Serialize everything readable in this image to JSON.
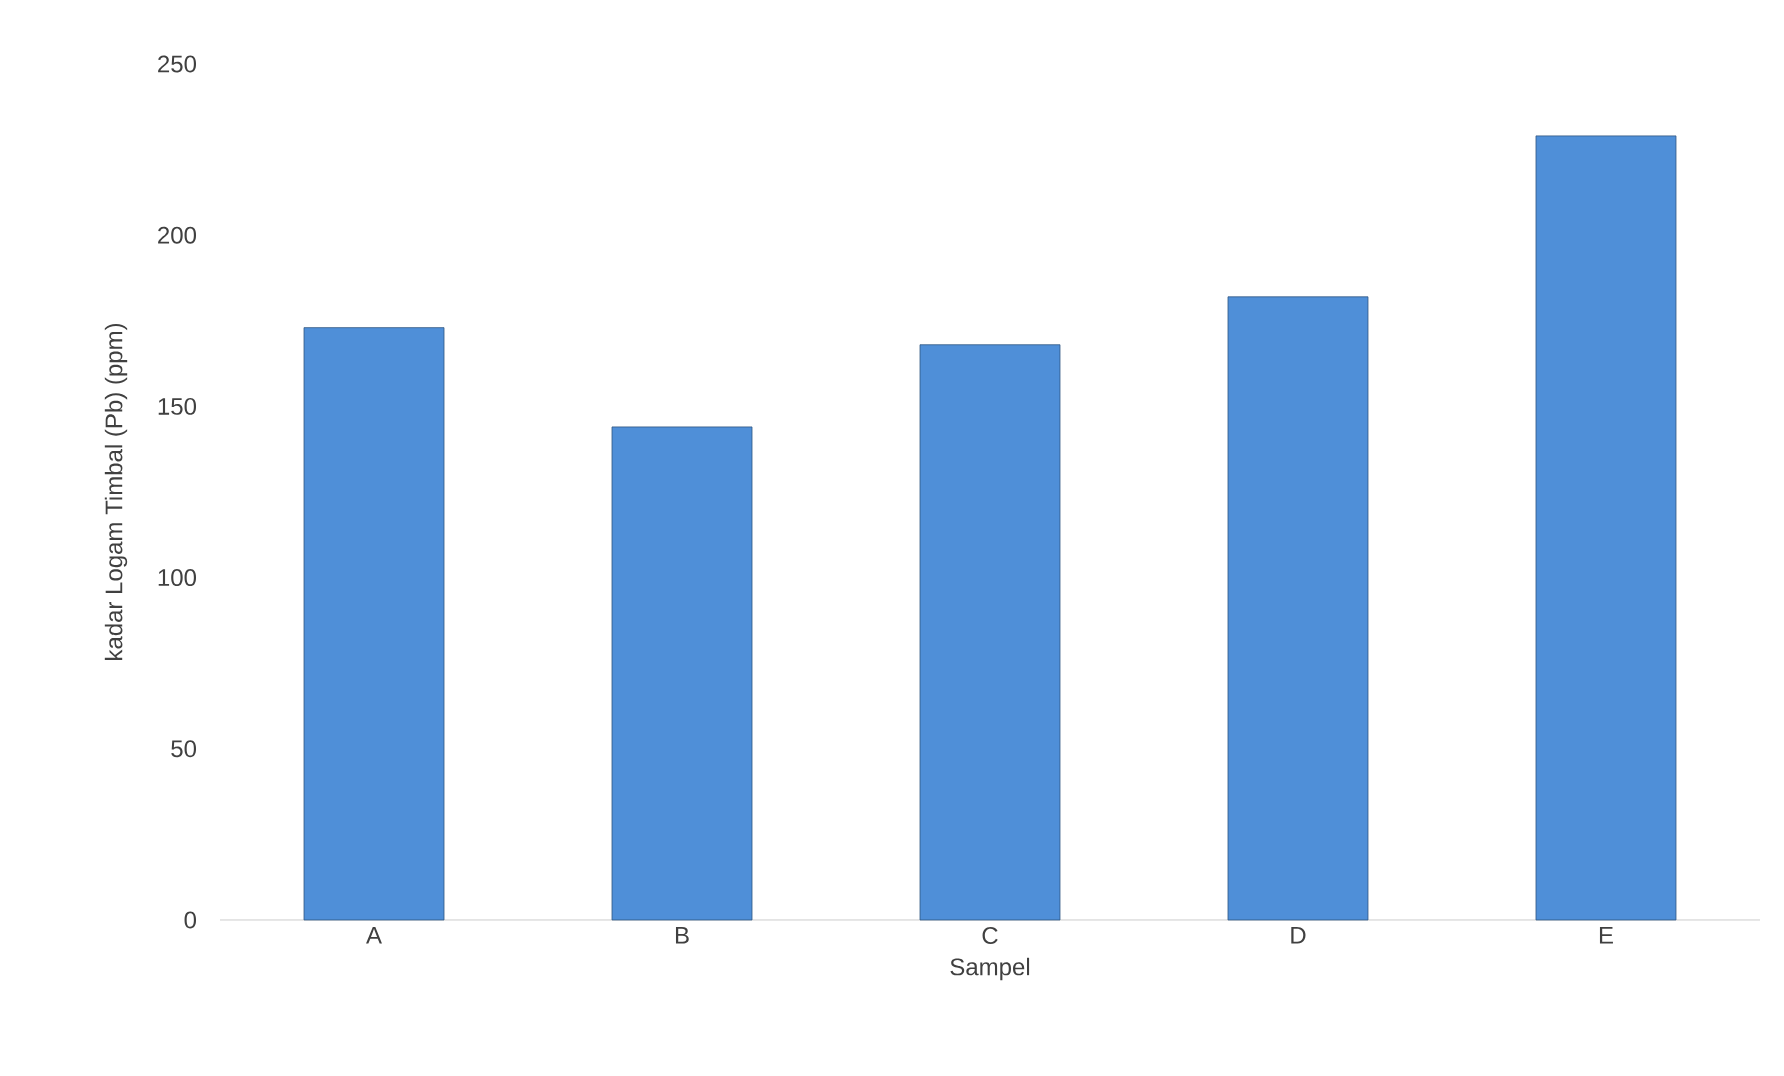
{
  "chart_data": {
    "type": "bar",
    "xlabel": "Sampel",
    "ylabel": "kadar Logam Timbal (Pb) (ppm)",
    "categories": [
      "A",
      "B",
      "C",
      "D",
      "E"
    ],
    "values": [
      173,
      144,
      168,
      182,
      229
    ],
    "color": "#4f8fd8",
    "ylim": [
      0,
      250
    ],
    "yticks": [
      0,
      50,
      100,
      150,
      200,
      250
    ],
    "grid": false
  }
}
